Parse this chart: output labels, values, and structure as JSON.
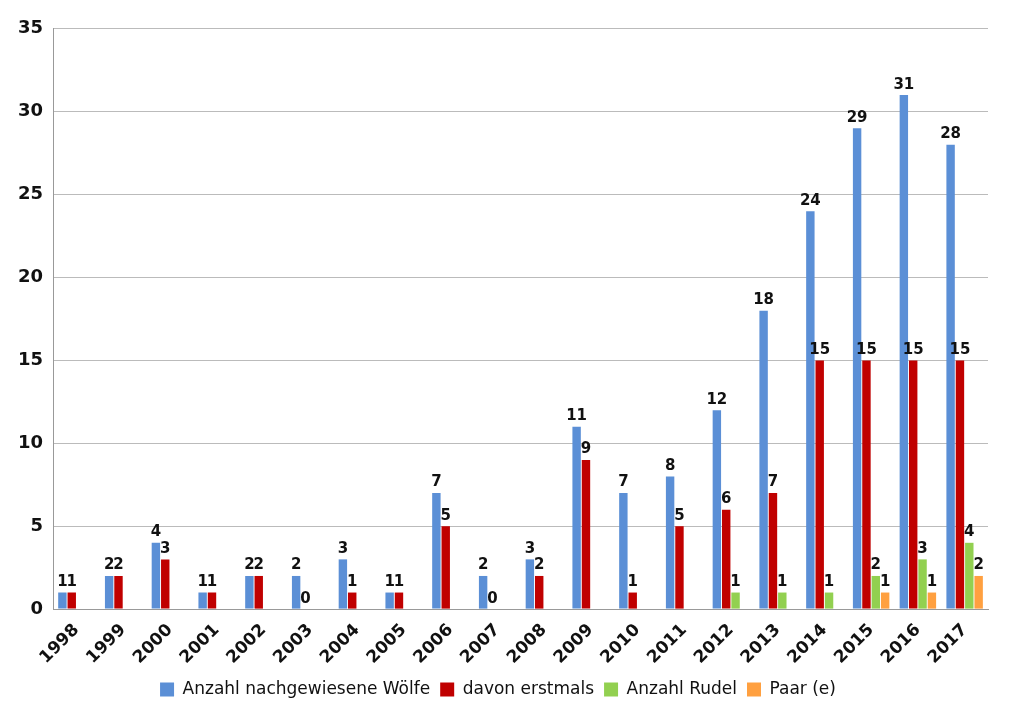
{
  "chart_data": {
    "type": "bar",
    "categories": [
      "1998",
      "1999",
      "2000",
      "2001",
      "2002",
      "2003",
      "2004",
      "2005",
      "2006",
      "2007",
      "2008",
      "2009",
      "2010",
      "2011",
      "2012",
      "2013",
      "2014",
      "2015",
      "2016",
      "2017"
    ],
    "series": [
      {
        "name": "Anzahl nachgewiesene Wölfe",
        "color": "#5b8fd6",
        "values": [
          1,
          2,
          4,
          1,
          2,
          2,
          3,
          1,
          7,
          2,
          3,
          11,
          7,
          8,
          12,
          18,
          24,
          29,
          31,
          28
        ]
      },
      {
        "name": "davon erstmals",
        "color": "#c00000",
        "values": [
          1,
          2,
          3,
          1,
          2,
          0,
          1,
          1,
          5,
          0,
          2,
          9,
          1,
          5,
          6,
          7,
          15,
          15,
          15,
          15
        ]
      },
      {
        "name": "Anzahl Rudel",
        "color": "#92d050",
        "values": [
          null,
          null,
          null,
          null,
          null,
          null,
          null,
          null,
          null,
          null,
          null,
          null,
          null,
          null,
          1,
          1,
          1,
          2,
          3,
          4
        ]
      },
      {
        "name": "Paar (e)",
        "color": "#ffa040",
        "values": [
          null,
          null,
          null,
          null,
          null,
          null,
          null,
          null,
          null,
          null,
          null,
          null,
          null,
          null,
          null,
          null,
          null,
          1,
          1,
          2
        ]
      }
    ],
    "ylim": [
      0,
      35
    ],
    "yticks": [
      0,
      5,
      10,
      15,
      20,
      25,
      30,
      35
    ],
    "grid": "y",
    "legend": "bottom",
    "data_labels": true
  }
}
